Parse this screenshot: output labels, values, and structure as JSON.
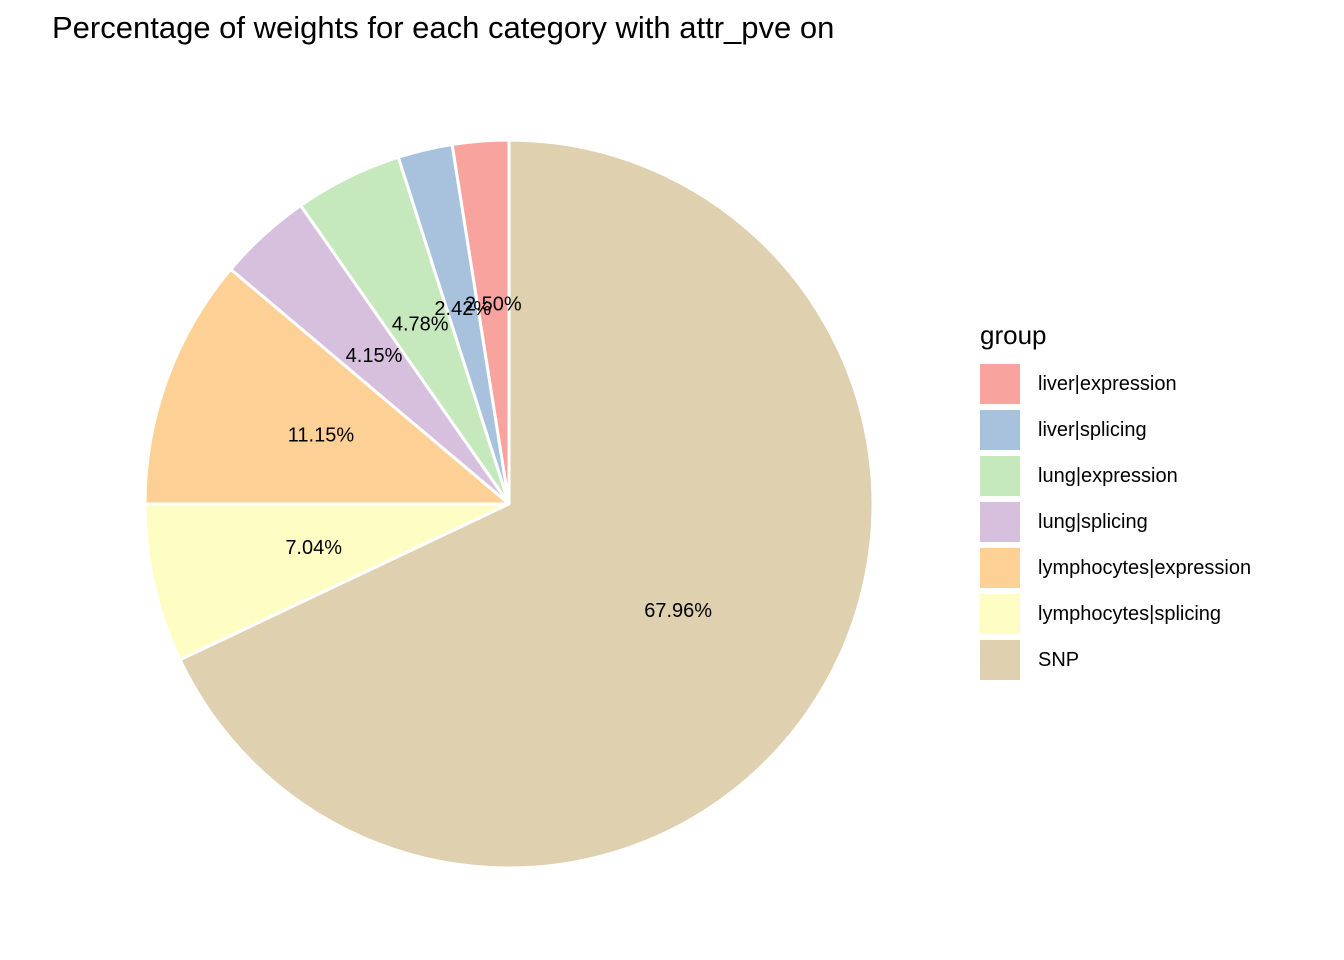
{
  "chart_data": {
    "type": "pie",
    "title": "Percentage of weights for each category with attr_pve on",
    "legend_title": "group",
    "legend_position": "right",
    "categories": [
      "liver|expression",
      "liver|splicing",
      "lung|expression",
      "lung|splicing",
      "lymphocytes|expression",
      "lymphocytes|splicing",
      "SNP"
    ],
    "values": [
      2.5,
      2.42,
      4.78,
      4.15,
      11.15,
      7.04,
      67.96
    ],
    "labels": [
      "2.50%",
      "2.42%",
      "4.78%",
      "4.15%",
      "11.15%",
      "7.04%",
      "67.96%"
    ],
    "colors": [
      "#F8A39E",
      "#A8C2DD",
      "#C5E8BC",
      "#D7C0DD",
      "#FDD095",
      "#FEFDC4",
      "#DFD1AF"
    ],
    "slice_border_color": "#ffffff"
  }
}
